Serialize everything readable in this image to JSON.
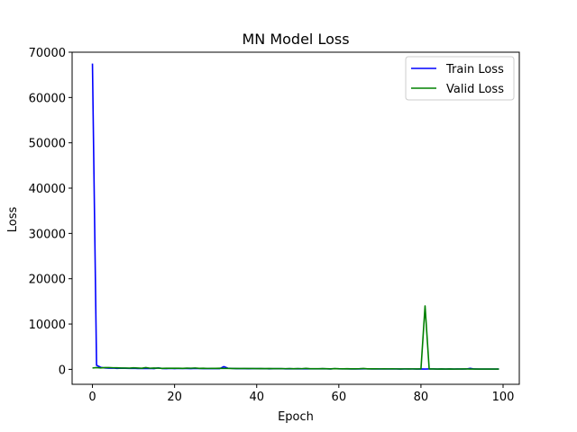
{
  "chart_data": {
    "type": "line",
    "title": "MN Model Loss",
    "xlabel": "Epoch",
    "ylabel": "Loss",
    "xlim": [
      -4.95,
      103.95
    ],
    "ylim": [
      -3300,
      70000
    ],
    "xticks": [
      0,
      20,
      40,
      60,
      80,
      100
    ],
    "xtick_labels": [
      "0",
      "20",
      "40",
      "60",
      "80",
      "100"
    ],
    "yticks": [
      0,
      10000,
      20000,
      30000,
      40000,
      50000,
      60000,
      70000
    ],
    "ytick_labels": [
      "0",
      "10000",
      "20000",
      "30000",
      "40000",
      "50000",
      "60000",
      "70000"
    ],
    "grid": false,
    "legend_position": "top-right",
    "x": [
      0,
      1,
      2,
      3,
      4,
      5,
      6,
      7,
      8,
      9,
      10,
      11,
      12,
      13,
      14,
      15,
      16,
      17,
      18,
      19,
      20,
      21,
      22,
      23,
      24,
      25,
      26,
      27,
      28,
      29,
      30,
      31,
      32,
      33,
      34,
      35,
      36,
      37,
      38,
      39,
      40,
      41,
      42,
      43,
      44,
      45,
      46,
      47,
      48,
      49,
      50,
      51,
      52,
      53,
      54,
      55,
      56,
      57,
      58,
      59,
      60,
      61,
      62,
      63,
      64,
      65,
      66,
      67,
      68,
      69,
      70,
      71,
      72,
      73,
      74,
      75,
      76,
      77,
      78,
      79,
      80,
      81,
      82,
      83,
      84,
      85,
      86,
      87,
      88,
      89,
      90,
      91,
      92,
      93,
      94,
      95,
      96,
      97,
      98,
      99
    ],
    "series": [
      {
        "name": "Train Loss",
        "color": "#0000ff",
        "values": [
          67500,
          900,
          450,
          300,
          250,
          280,
          220,
          260,
          230,
          210,
          230,
          190,
          220,
          180,
          200,
          170,
          330,
          190,
          160,
          200,
          170,
          210,
          190,
          180,
          160,
          200,
          180,
          150,
          170,
          150,
          150,
          160,
          600,
          240,
          200,
          170,
          150,
          160,
          140,
          150,
          160,
          130,
          150,
          120,
          140,
          130,
          150,
          120,
          130,
          110,
          130,
          120,
          140,
          110,
          120,
          100,
          130,
          110,
          90,
          150,
          100,
          110,
          100,
          90,
          100,
          80,
          120,
          100,
          90,
          100,
          80,
          90,
          80,
          100,
          90,
          70,
          90,
          80,
          80,
          70,
          80,
          70,
          90,
          80,
          70,
          80,
          70,
          90,
          60,
          80,
          70,
          80,
          230,
          80,
          70,
          70,
          60,
          70,
          60,
          70
        ]
      },
      {
        "name": "Valid Loss",
        "color": "#008000",
        "values": [
          300,
          380,
          320,
          380,
          400,
          350,
          330,
          280,
          300,
          260,
          330,
          280,
          240,
          380,
          250,
          280,
          260,
          220,
          240,
          230,
          250,
          240,
          220,
          260,
          250,
          300,
          220,
          230,
          200,
          220,
          210,
          230,
          200,
          210,
          190,
          200,
          180,
          200,
          190,
          180,
          170,
          190,
          160,
          180,
          170,
          160,
          170,
          150,
          170,
          140,
          160,
          150,
          210,
          140,
          150,
          130,
          160,
          130,
          120,
          170,
          130,
          120,
          140,
          110,
          120,
          130,
          190,
          110,
          120,
          110,
          100,
          110,
          100,
          110,
          100,
          90,
          100,
          90,
          100,
          90,
          100,
          14000,
          90,
          80,
          70,
          80,
          70,
          80,
          70,
          70,
          80,
          80,
          70,
          70,
          60,
          70,
          60,
          70,
          60,
          70
        ]
      }
    ]
  }
}
